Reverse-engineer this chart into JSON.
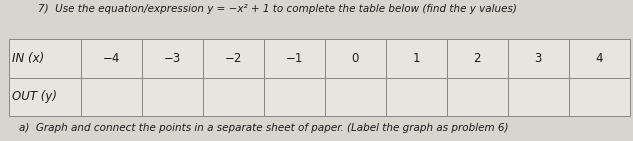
{
  "title": "7)  Use the equation/expression y = −x² + 1 to complete the table below (find the y values)",
  "row1_label": "IN (x)",
  "row2_label": "OUT (y)",
  "x_values": [
    "−4",
    "−3",
    "−2",
    "−1",
    "0",
    "1",
    "2",
    "3",
    "4"
  ],
  "y_values": [
    "",
    "",
    "",
    "",
    "",
    "",
    "",
    "",
    ""
  ],
  "footnote": "a)  Graph and connect the points in a separate sheet of paper. (Label the graph as problem 6)",
  "bg_color": "#d8d5ce",
  "cell_color": "#e8e5de",
  "border_color": "#888880",
  "text_color": "#1a1a1a",
  "title_fontsize": 7.5,
  "table_fontsize": 8.5,
  "footnote_fontsize": 7.5
}
